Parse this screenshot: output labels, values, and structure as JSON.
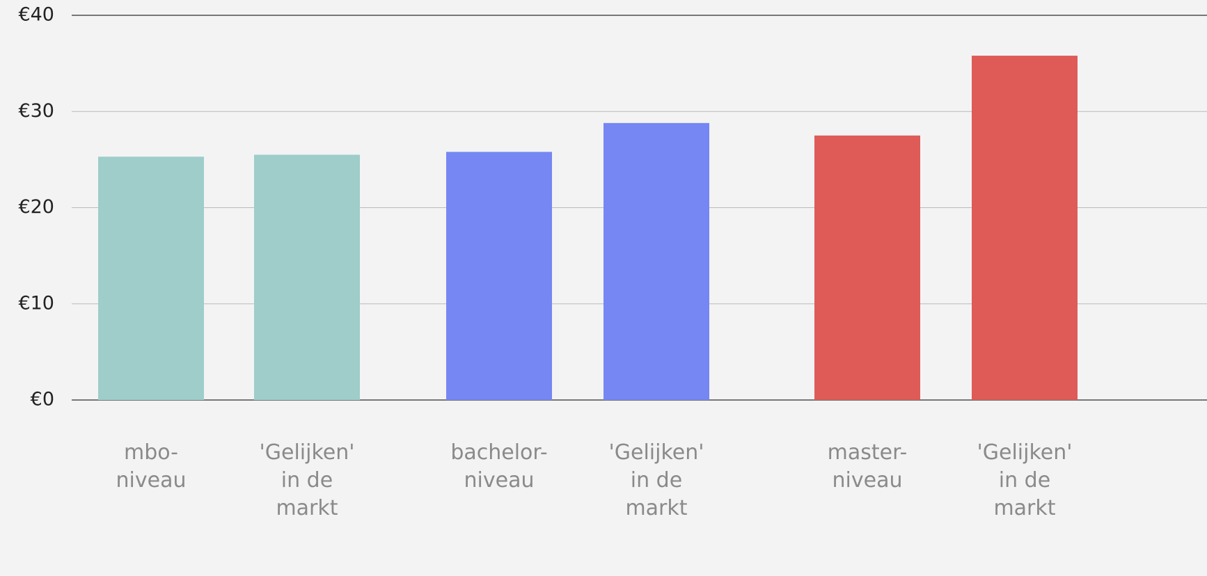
{
  "chart_data": {
    "type": "bar",
    "categories": [
      [
        "mbo-",
        "niveau"
      ],
      [
        "'Gelijken'",
        "in de",
        "markt"
      ],
      [
        "bachelor-",
        "niveau"
      ],
      [
        "'Gelijken'",
        "in de",
        "markt"
      ],
      [
        "master-",
        "niveau"
      ],
      [
        "'Gelijken'",
        "in de",
        "markt"
      ]
    ],
    "values": [
      25.3,
      25.5,
      25.8,
      28.8,
      27.5,
      35.8
    ],
    "colors": [
      "#9ecdca",
      "#9ecdca",
      "#7687f3",
      "#7687f3",
      "#de5b57",
      "#de5b57"
    ],
    "ylim": [
      0,
      40
    ],
    "yticks": [
      {
        "value": 0,
        "label": "€0"
      },
      {
        "value": 10,
        "label": "€10"
      },
      {
        "value": 20,
        "label": "€20"
      },
      {
        "value": 30,
        "label": "€30"
      },
      {
        "value": 40,
        "label": "€40"
      }
    ],
    "grid": true
  }
}
